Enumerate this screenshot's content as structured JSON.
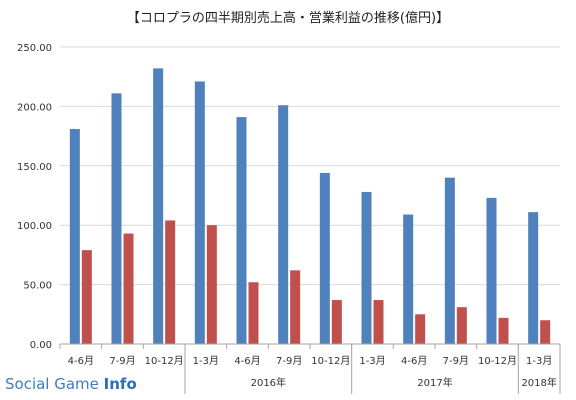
{
  "chart_data": {
    "type": "bar",
    "title": "【コロプラの四半期別売上高・営業利益の推移(億円)】",
    "xlabel": "",
    "ylabel": "",
    "ylim": [
      0,
      250
    ],
    "yticks": [
      "0.00",
      "50.00",
      "100.00",
      "150.00",
      "200.00",
      "250.00"
    ],
    "grid": true,
    "legend": "none",
    "categories": [
      "4-6月",
      "7-9月",
      "10-12月",
      "1-3月",
      "4-6月",
      "7-9月",
      "10-12月",
      "1-3月",
      "4-6月",
      "7-9月",
      "10-12月",
      "1-3月"
    ],
    "year_groups": [
      {
        "label": "",
        "start": 0,
        "end": 2
      },
      {
        "label": "2016年",
        "start": 3,
        "end": 6
      },
      {
        "label": "2017年",
        "start": 7,
        "end": 10
      },
      {
        "label": "2018年",
        "start": 11,
        "end": 11
      }
    ],
    "series": [
      {
        "values": [
          181,
          211,
          232,
          221,
          191,
          201,
          144,
          128,
          109,
          140,
          123,
          111
        ],
        "color": "#4f81bd"
      },
      {
        "values": [
          79,
          93,
          104,
          100,
          52,
          62,
          37,
          37,
          25,
          31,
          22,
          20
        ],
        "color": "#c0504d"
      }
    ]
  },
  "watermark": {
    "part1": "Social Game ",
    "part2": "Info"
  }
}
